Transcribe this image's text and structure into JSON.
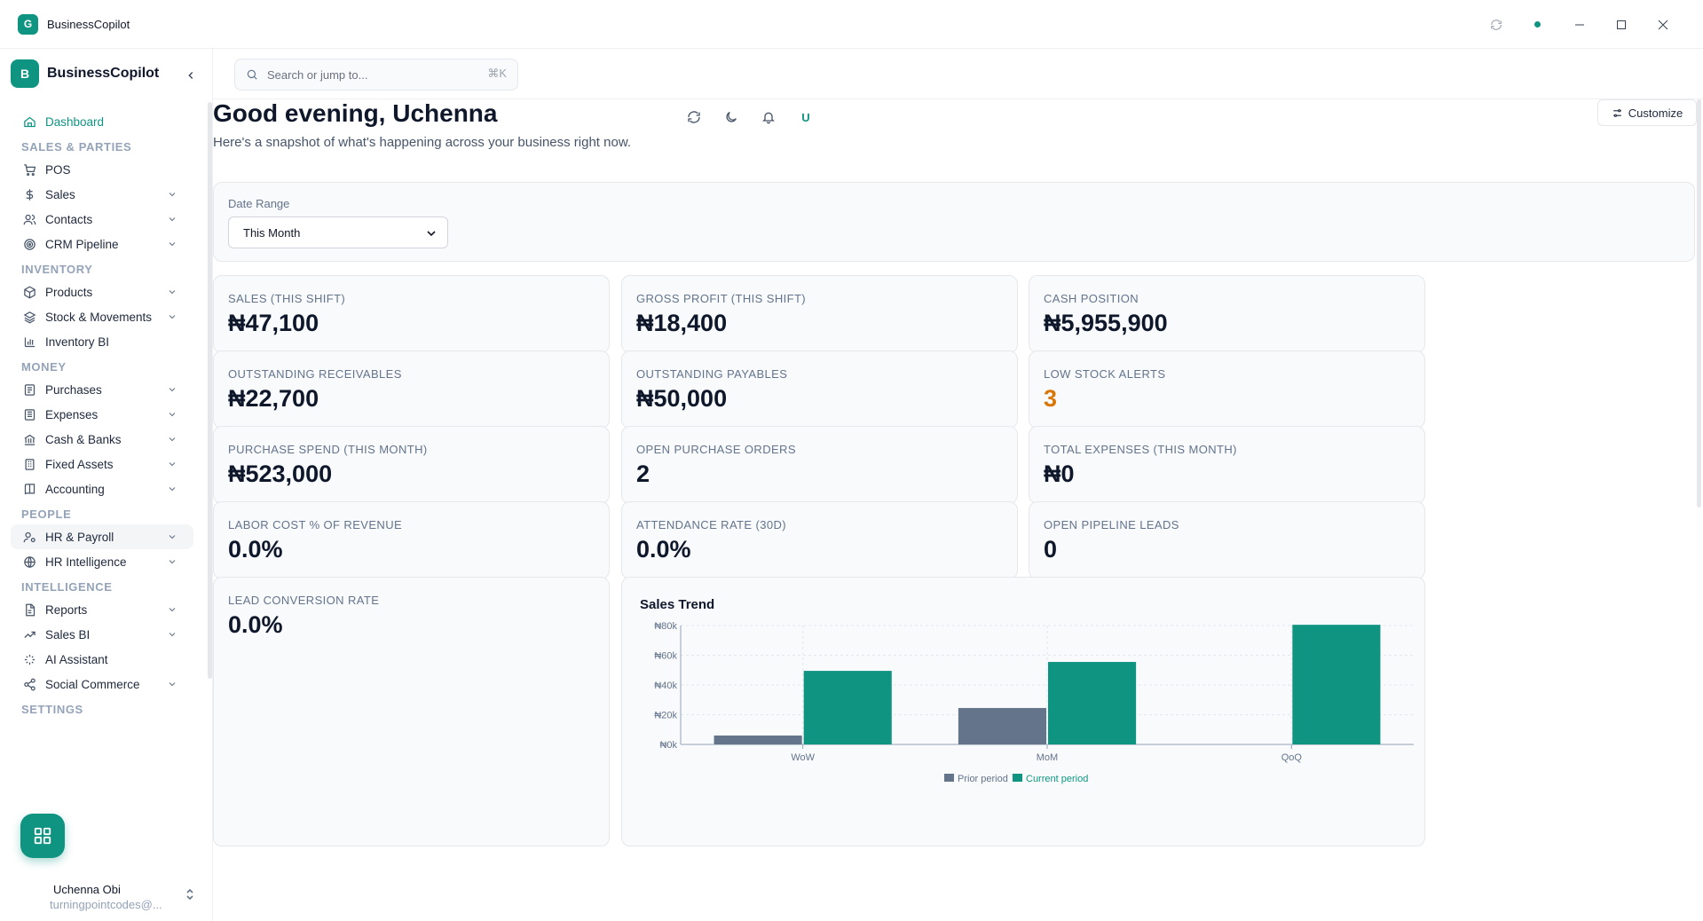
{
  "window": {
    "title": "BusinessCopilot",
    "icon_letter": "G"
  },
  "sidebar": {
    "brand_letter": "B",
    "brand_name": "BusinessCopilot",
    "sections": [
      {
        "title": "",
        "items": [
          {
            "label": "Dashboard",
            "icon": "home-icon",
            "active": true,
            "chevron": false
          }
        ]
      },
      {
        "title": "SALES & PARTIES",
        "items": [
          {
            "label": "POS",
            "icon": "cart-icon",
            "chevron": false
          },
          {
            "label": "Sales",
            "icon": "dollar-icon",
            "chevron": true
          },
          {
            "label": "Contacts",
            "icon": "users-icon",
            "chevron": true
          },
          {
            "label": "CRM Pipeline",
            "icon": "target-icon",
            "chevron": true
          }
        ]
      },
      {
        "title": "INVENTORY",
        "items": [
          {
            "label": "Products",
            "icon": "box-icon",
            "chevron": true
          },
          {
            "label": "Stock & Movements",
            "icon": "layers-icon",
            "chevron": true
          },
          {
            "label": "Inventory BI",
            "icon": "bar-chart-icon",
            "chevron": false
          }
        ]
      },
      {
        "title": "MONEY",
        "items": [
          {
            "label": "Purchases",
            "icon": "receipt-icon",
            "chevron": true
          },
          {
            "label": "Expenses",
            "icon": "expense-icon",
            "chevron": true
          },
          {
            "label": "Cash & Banks",
            "icon": "bank-icon",
            "chevron": true
          },
          {
            "label": "Fixed Assets",
            "icon": "building-icon",
            "chevron": true
          },
          {
            "label": "Accounting",
            "icon": "book-icon",
            "chevron": true
          }
        ]
      },
      {
        "title": "PEOPLE",
        "items": [
          {
            "label": "HR & Payroll",
            "icon": "user-cog-icon",
            "chevron": true,
            "hover": true
          },
          {
            "label": "HR Intelligence",
            "icon": "globe-icon",
            "chevron": true
          }
        ]
      },
      {
        "title": "INTELLIGENCE",
        "items": [
          {
            "label": "Reports",
            "icon": "file-icon",
            "chevron": true
          },
          {
            "label": "Sales BI",
            "icon": "trend-icon",
            "chevron": true
          },
          {
            "label": "AI Assistant",
            "icon": "sparkle-icon",
            "chevron": false
          },
          {
            "label": "Social Commerce",
            "icon": "share-icon",
            "chevron": true
          }
        ]
      },
      {
        "title": "SETTINGS",
        "items": []
      }
    ],
    "user": {
      "name": "Uchenna Obi",
      "email": "turningpointcodes@..."
    }
  },
  "search": {
    "placeholder": "Search or jump to...",
    "shortcut": "⌘K"
  },
  "header": {
    "greeting": "Good evening, Uchenna",
    "subtitle": "Here's a snapshot of what's happening across your business right now.",
    "avatar_letter": "U",
    "customize_label": "Customize"
  },
  "filters": {
    "date_range_label": "Date Range",
    "date_range_value": "This Month"
  },
  "kpis": [
    {
      "label": "SALES (THIS SHIFT)",
      "value": "₦47,100"
    },
    {
      "label": "GROSS PROFIT (THIS SHIFT)",
      "value": "₦18,400"
    },
    {
      "label": "CASH POSITION",
      "value": "₦5,955,900"
    },
    {
      "label": "OUTSTANDING RECEIVABLES",
      "value": "₦22,700"
    },
    {
      "label": "OUTSTANDING PAYABLES",
      "value": "₦50,000"
    },
    {
      "label": "LOW STOCK ALERTS",
      "value": "3",
      "warn": true
    },
    {
      "label": "PURCHASE SPEND (THIS MONTH)",
      "value": "₦523,000"
    },
    {
      "label": "OPEN PURCHASE ORDERS",
      "value": "2"
    },
    {
      "label": "TOTAL EXPENSES (THIS MONTH)",
      "value": "₦0"
    },
    {
      "label": "LABOR COST % OF REVENUE",
      "value": "0.0%"
    },
    {
      "label": "ATTENDANCE RATE (30D)",
      "value": "0.0%"
    },
    {
      "label": "OPEN PIPELINE LEADS",
      "value": "0"
    }
  ],
  "lead_card": {
    "label": "LEAD CONVERSION RATE",
    "value": "0.0%"
  },
  "colors": {
    "accent": "#0f9482",
    "prior": "#64748b",
    "warn": "#d97706"
  },
  "chart_data": {
    "type": "bar",
    "title": "Sales Trend",
    "categories": [
      "WoW",
      "MoM",
      "QoQ"
    ],
    "series": [
      {
        "name": "Prior period",
        "values": [
          6000,
          24500,
          0
        ],
        "color": "#64748b"
      },
      {
        "name": "Current period",
        "values": [
          49500,
          55500,
          80500
        ],
        "color": "#0f9482"
      }
    ],
    "ylim": [
      0,
      80000
    ],
    "yticks": [
      {
        "value": 0,
        "label": "₦0k"
      },
      {
        "value": 20000,
        "label": "₦20k"
      },
      {
        "value": 40000,
        "label": "₦40k"
      },
      {
        "value": 60000,
        "label": "₦60k"
      },
      {
        "value": 80000,
        "label": "₦80k"
      }
    ],
    "grid": true,
    "legend": "bottom"
  }
}
